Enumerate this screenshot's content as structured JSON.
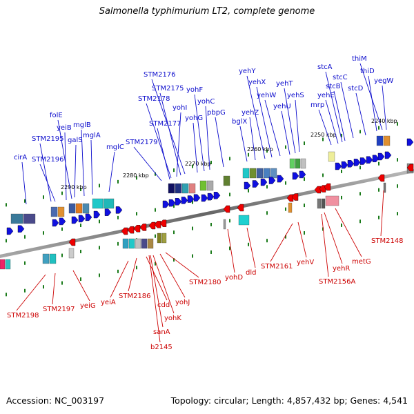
{
  "title": "Salmonella typhimurium LT2, complete genome",
  "footer": {
    "accession": "Accession: NC_003197",
    "stats": "Topology: circular; Length: 4,857,432 bp; Genes: 4,541"
  },
  "colors": {
    "forward_label": "#0a0acc",
    "reverse_label": "#cc0000",
    "forward_arrow": "#1010e0",
    "reverse_arrow": "#ee0000",
    "backbone": "#777777",
    "tick": "#1a7a1a"
  },
  "kbp_labels": [
    "2290 kbp",
    "2280 kbp",
    "2270 kbp",
    "2260 kbp",
    "2250 kbp",
    "2240 kbp"
  ],
  "forward_genes": [
    "cirA",
    "STM2196",
    "STM2195",
    "yeiB",
    "folE",
    "galS",
    "mglB",
    "mglA",
    "mglC",
    "STM2179",
    "STM2177",
    "STM2178",
    "yohI",
    "STM2175",
    "STM2176",
    "yohG",
    "yohF",
    "yohC",
    "pbpG",
    "bglX",
    "yehZ",
    "yehY",
    "yehX",
    "yehW",
    "yehU",
    "yehT",
    "yehS",
    "mrp",
    "yehE",
    "stcA",
    "stcB",
    "stcC",
    "stcD",
    "thiD",
    "thiM",
    "yegW"
  ],
  "reverse_genes": [
    "STM2198",
    "STM2197",
    "yeiG",
    "yeiA",
    "STM2186",
    "cdd",
    "sanA",
    "b2145",
    "yohK",
    "yohJ",
    "STM2180",
    "yohD",
    "dld",
    "STM2161",
    "yehV",
    "yehR",
    "STM2156A",
    "metG",
    "STM2148"
  ]
}
